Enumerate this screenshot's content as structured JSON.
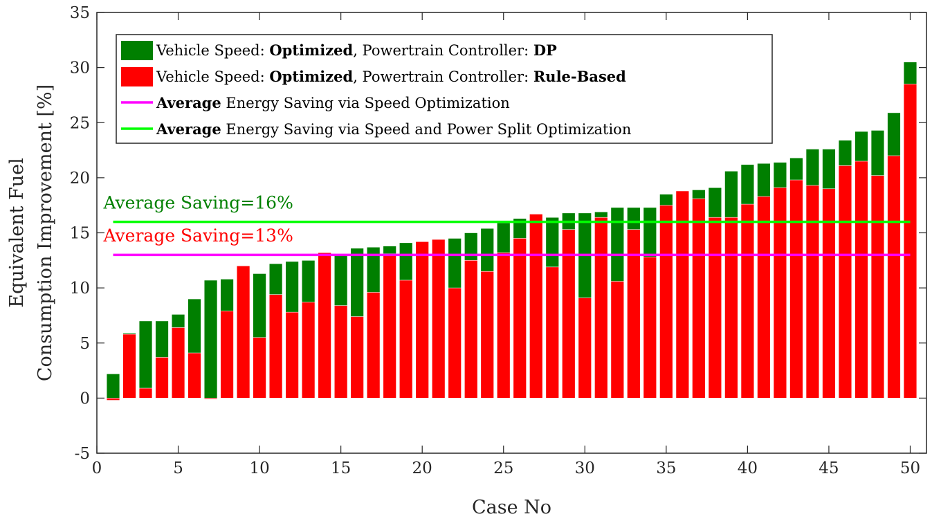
{
  "chart_data": {
    "type": "bar",
    "xlabel": "Case No",
    "ylabel_line1": "Equivalent Fuel",
    "ylabel_line2": "Consumption Improvement [%]",
    "xlim": [
      0,
      51
    ],
    "ylim": [
      -5,
      35
    ],
    "xticks": [
      "0",
      "5",
      "10",
      "15",
      "20",
      "25",
      "30",
      "35",
      "40",
      "45",
      "50"
    ],
    "yticks": [
      "-5",
      "0",
      "5",
      "10",
      "15",
      "20",
      "25",
      "30",
      "35"
    ],
    "grid": false,
    "legend_position": "top-left",
    "x": [
      1,
      2,
      3,
      4,
      5,
      6,
      7,
      8,
      9,
      10,
      11,
      12,
      13,
      14,
      15,
      16,
      17,
      18,
      19,
      20,
      21,
      22,
      23,
      24,
      25,
      26,
      27,
      28,
      29,
      30,
      31,
      32,
      33,
      34,
      35,
      36,
      37,
      38,
      39,
      40,
      41,
      42,
      43,
      44,
      45,
      46,
      47,
      48,
      49,
      50
    ],
    "series": [
      {
        "name": "DP",
        "color": "#007f00",
        "values": [
          2.2,
          5.9,
          7.0,
          7.0,
          7.6,
          9.0,
          10.7,
          10.8,
          11.3,
          11.3,
          12.2,
          12.4,
          12.5,
          13.1,
          13.1,
          13.6,
          13.7,
          13.8,
          14.1,
          14.2,
          14.4,
          14.5,
          15.0,
          15.4,
          15.9,
          16.3,
          16.3,
          16.4,
          16.8,
          16.8,
          16.9,
          17.3,
          17.3,
          17.3,
          18.5,
          18.8,
          18.9,
          19.1,
          20.6,
          21.2,
          21.3,
          21.4,
          21.8,
          22.6,
          22.6,
          23.4,
          24.2,
          24.3,
          25.9,
          30.5
        ]
      },
      {
        "name": "Rule-Based",
        "color": "#ff0000",
        "values": [
          -0.2,
          5.8,
          0.9,
          3.7,
          6.4,
          4.1,
          -0.1,
          7.9,
          12.0,
          5.5,
          9.4,
          7.8,
          8.7,
          13.2,
          8.4,
          7.4,
          9.6,
          13.1,
          10.7,
          14.2,
          14.4,
          10.0,
          12.5,
          11.5,
          13.2,
          14.5,
          16.7,
          11.9,
          15.3,
          9.1,
          16.4,
          10.6,
          15.3,
          12.8,
          17.5,
          18.8,
          18.1,
          16.4,
          16.4,
          17.6,
          18.3,
          19.1,
          19.8,
          19.3,
          19.0,
          21.1,
          21.5,
          20.2,
          22.0,
          28.5
        ]
      }
    ],
    "reference_lines": [
      {
        "name": "Average Energy Saving via Speed Optimization",
        "value": 13,
        "color": "#ff00ff",
        "x_range": [
          1,
          50
        ]
      },
      {
        "name": "Average Energy Saving via Speed and Power Split Optimization",
        "value": 16,
        "color": "#00ff00",
        "x_range": [
          1,
          50
        ]
      }
    ],
    "annotations": [
      {
        "text": "Average Saving=16%",
        "color": "#008000",
        "x": 1,
        "y": 17.2
      },
      {
        "text": "Average Saving=13%",
        "color": "#ff0000",
        "x": 1,
        "y": 14.2
      }
    ],
    "legend": [
      {
        "prefix": "Vehicle Speed: ",
        "bold1": "Optimized",
        "mid": ", Powertrain Controller: ",
        "bold2": "DP",
        "suffix": "",
        "marker": "patch",
        "color": "#007f00"
      },
      {
        "prefix": "Vehicle Speed: ",
        "bold1": "Optimized",
        "mid": ", Powertrain Controller: ",
        "bold2": "Rule-Based",
        "suffix": "",
        "marker": "patch",
        "color": "#ff0000"
      },
      {
        "prefix": "",
        "bold1": "Average",
        "mid": " Energy Saving via Speed Optimization",
        "bold2": "",
        "suffix": "",
        "marker": "line",
        "color": "#ff00ff"
      },
      {
        "prefix": "",
        "bold1": "Average",
        "mid": " Energy Saving via Speed and Power Split Optimization",
        "bold2": "",
        "suffix": "",
        "marker": "line",
        "color": "#00ff00"
      }
    ]
  }
}
